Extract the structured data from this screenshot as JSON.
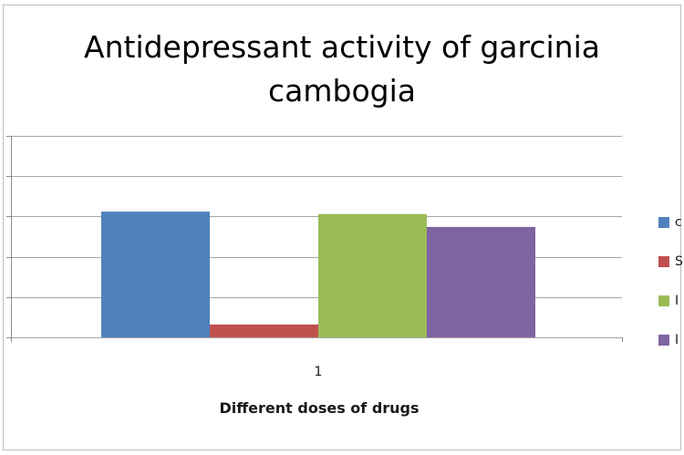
{
  "chart_data": {
    "type": "bar",
    "title": "Antidepressant activity of garcinia cambogia",
    "title_lines": [
      "Antidepressant activity of garcinia",
      "cambogia"
    ],
    "xlabel": "Different doses of drugs",
    "categories": [
      "1"
    ],
    "series": [
      {
        "name": "c",
        "values": [
          156
        ],
        "color": "#4f81bd"
      },
      {
        "name": "S",
        "values": [
          16
        ],
        "color": "#c0504d"
      },
      {
        "name": "I",
        "values": [
          153
        ],
        "color": "#9bbb59"
      },
      {
        "name": "I",
        "values": [
          137
        ],
        "color": "#8064a2"
      }
    ],
    "ylim": [
      0,
      250
    ],
    "grid": true,
    "legend_position": "right",
    "tick_labels_visible": false
  }
}
